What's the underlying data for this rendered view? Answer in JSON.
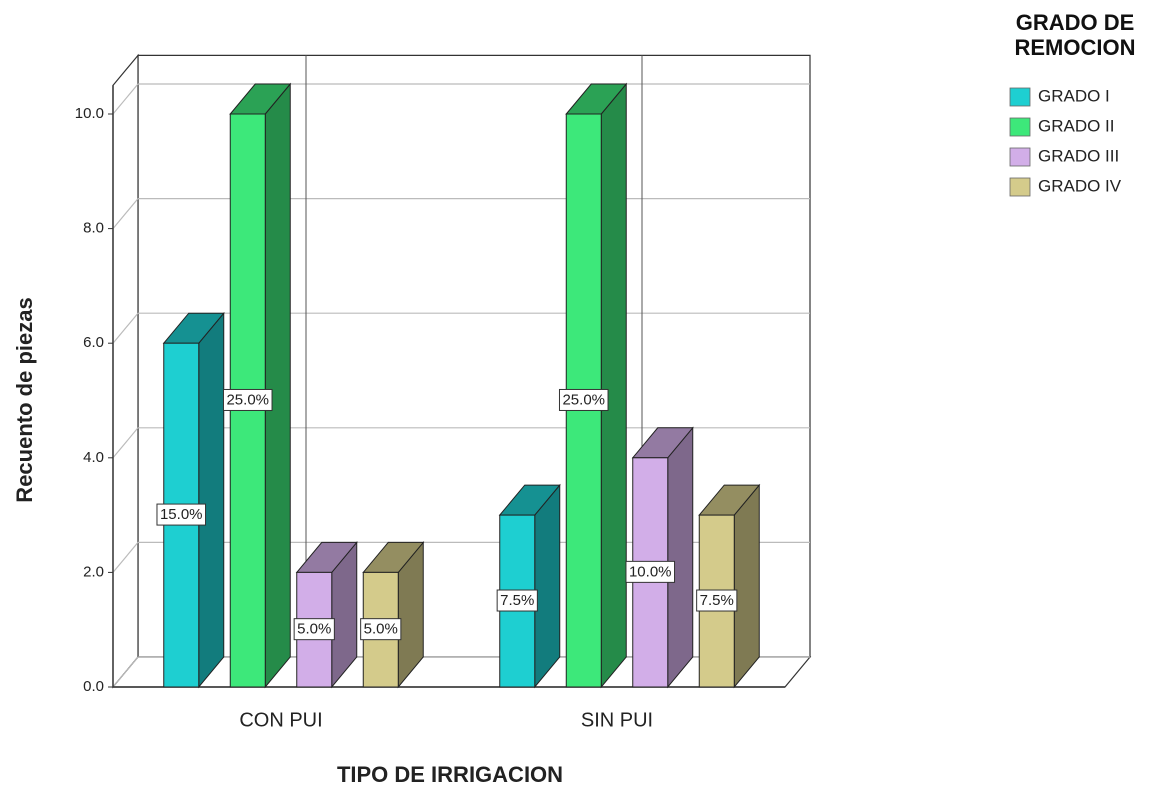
{
  "chart_data": {
    "type": "bar3d",
    "x_label": "TIPO DE IRRIGACION",
    "y_label": "Recuento de piezas",
    "legend_title": "GRADO DE REMOCION",
    "categories": [
      "CON PUI",
      "SIN PUI"
    ],
    "series": [
      {
        "name": "GRADO I",
        "color": "#1ecfd1",
        "values": [
          6,
          3
        ],
        "value_labels": [
          "15.0%",
          "7.5%"
        ]
      },
      {
        "name": "GRADO II",
        "color": "#3de87a",
        "values": [
          10,
          10
        ],
        "value_labels": [
          "25.0%",
          "25.0%"
        ]
      },
      {
        "name": "GRADO III",
        "color": "#d2aee8",
        "values": [
          2,
          4
        ],
        "value_labels": [
          "5.0%",
          "10.0%"
        ]
      },
      {
        "name": "GRADO IV",
        "color": "#d4cb8b",
        "values": [
          2,
          3
        ],
        "value_labels": [
          "5.0%",
          "7.5%"
        ]
      }
    ],
    "ylim": [
      0,
      10.5
    ],
    "yticks": [
      {
        "value": 0,
        "label": "0.0"
      },
      {
        "value": 2,
        "label": "2.0"
      },
      {
        "value": 4,
        "label": "4.0"
      },
      {
        "value": 6,
        "label": "6.0"
      },
      {
        "value": 8,
        "label": "8.0"
      },
      {
        "value": 10,
        "label": "10.0"
      }
    ],
    "grid": true,
    "legend": "right"
  }
}
